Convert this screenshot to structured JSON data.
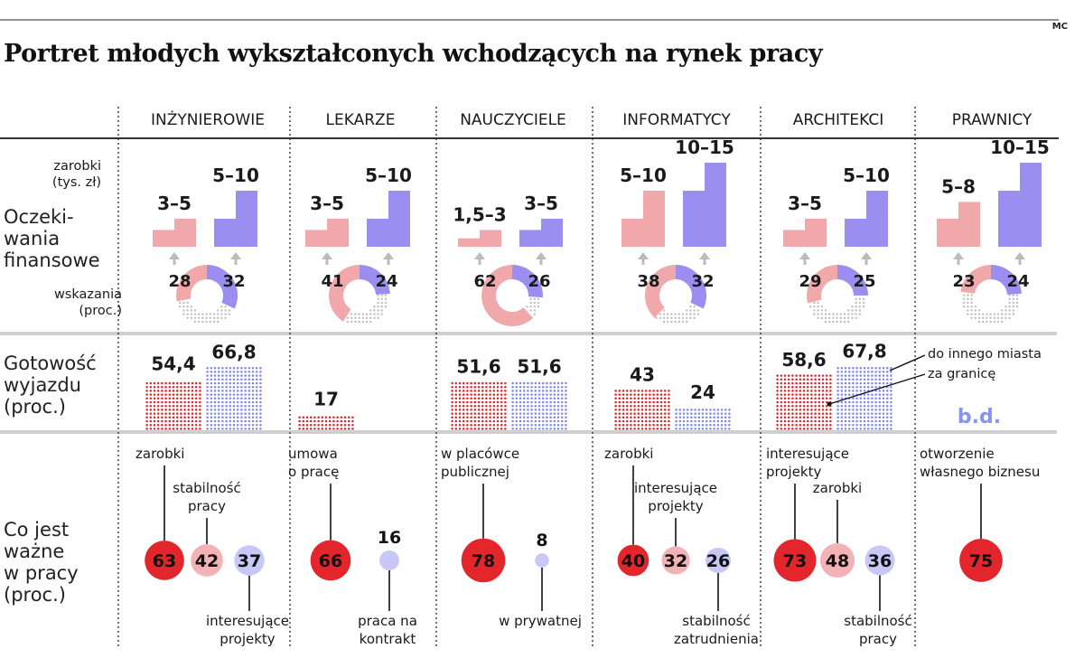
{
  "credit": "MC",
  "title": "Portret młodych wykształconych wchodzących na rynek pracy",
  "row_labels": {
    "expectations": "Oczeki-\nwania\nfinansowe",
    "mobility": "Gotowość\nwyjazdu\n(proc.)",
    "importance": "Co jest\nważne\nw pracy\n(proc.)"
  },
  "sub_labels": {
    "earnings": "zarobki\n(tys. zł)",
    "indications": "wskazania\n(proc.)"
  },
  "colors": {
    "pink": "#f0a8ab",
    "violet": "#9a8ef0",
    "red": "#e3252c",
    "dot_red": "#d9272f",
    "dot_blue": "#7f86ee",
    "circle_pink": "#f3b3b6",
    "circle_lavender": "#c7c8f6",
    "dot_gray": "#bdbdbd",
    "bd": "#8a92ef"
  },
  "chart_data": {
    "type": "table",
    "professions": [
      {
        "name": "INŻYNIEROWIE",
        "expectations": {
          "label_a": "3–5",
          "label_b": "5–10",
          "low_a": 3,
          "high_a": 5,
          "low_b": 5,
          "high_b": 10,
          "ind_a": 28,
          "ind_b": 32
        },
        "mobility": {
          "city": 54.4,
          "abroad": 66.8,
          "city_label": "54,4",
          "abroad_label": "66,8"
        },
        "importance": [
          {
            "label": "zarobki",
            "value": 63,
            "color": "red",
            "pos": "above"
          },
          {
            "label": "stabilność\npracy",
            "value": 42,
            "color": "pink",
            "pos": "above"
          },
          {
            "label": "interesujące\nprojekty",
            "value": 37,
            "color": "lavender",
            "pos": "below"
          }
        ]
      },
      {
        "name": "LEKARZE",
        "expectations": {
          "label_a": "3–5",
          "label_b": "5–10",
          "low_a": 3,
          "high_a": 5,
          "low_b": 5,
          "high_b": 10,
          "ind_a": 41,
          "ind_b": 24
        },
        "mobility": {
          "city": 17,
          "abroad": null,
          "city_label": "17",
          "abroad_label": ""
        },
        "importance": [
          {
            "label": "umowa\no pracę",
            "value": 66,
            "color": "red",
            "pos": "above"
          },
          {
            "label": "praca na\nkontrakt",
            "value": 16,
            "color": "lavender",
            "pos": "below"
          }
        ]
      },
      {
        "name": "NAUCZYCIELE",
        "expectations": {
          "label_a": "1,5–3",
          "label_b": "3–5",
          "low_a": 1.5,
          "high_a": 3,
          "low_b": 3,
          "high_b": 5,
          "ind_a": 62,
          "ind_b": 26
        },
        "mobility": {
          "city": 51.6,
          "abroad": 51.6,
          "city_label": "51,6",
          "abroad_label": "51,6"
        },
        "importance": [
          {
            "label": "w placówce\npublicznej",
            "value": 78,
            "color": "red",
            "pos": "above"
          },
          {
            "label": "w prywatnej",
            "value": 8,
            "color": "lavender",
            "pos": "below"
          }
        ]
      },
      {
        "name": "INFORMATYCY",
        "expectations": {
          "label_a": "5–10",
          "label_b": "10–15",
          "low_a": 5,
          "high_a": 10,
          "low_b": 10,
          "high_b": 15,
          "ind_a": 38,
          "ind_b": 32
        },
        "mobility": {
          "city": 43,
          "abroad": 24,
          "city_label": "43",
          "abroad_label": "24"
        },
        "importance": [
          {
            "label": "zarobki",
            "value": 40,
            "color": "red",
            "pos": "above"
          },
          {
            "label": "interesujące\nprojekty",
            "value": 32,
            "color": "pink",
            "pos": "above"
          },
          {
            "label": "stabilność\nzatrudnienia",
            "value": 26,
            "color": "lavender",
            "pos": "below"
          }
        ]
      },
      {
        "name": "ARCHITEKCI",
        "expectations": {
          "label_a": "3–5",
          "label_b": "5–10",
          "low_a": 3,
          "high_a": 5,
          "low_b": 5,
          "high_b": 10,
          "ind_a": 29,
          "ind_b": 25
        },
        "mobility": {
          "city": 58.6,
          "abroad": 67.8,
          "city_label": "58,6",
          "abroad_label": "67,8"
        },
        "importance": [
          {
            "label": "interesujące\nprojekty",
            "value": 73,
            "color": "red",
            "pos": "above"
          },
          {
            "label": "zarobki",
            "value": 48,
            "color": "pink",
            "pos": "above"
          },
          {
            "label": "stabilność\npracy",
            "value": 36,
            "color": "lavender",
            "pos": "below"
          }
        ]
      },
      {
        "name": "PRAWNICY",
        "expectations": {
          "label_a": "5–8",
          "label_b": "10–15",
          "low_a": 5,
          "high_a": 8,
          "low_b": 10,
          "high_b": 15,
          "ind_a": 23,
          "ind_b": 24
        },
        "mobility": {
          "city": null,
          "abroad": null,
          "city_label": "",
          "abroad_label": "",
          "no_data_label": "b.d."
        },
        "importance": [
          {
            "label": "otworzenie\nwłasnego biznesu",
            "value": 75,
            "color": "red",
            "pos": "above"
          }
        ]
      }
    ],
    "legend": {
      "city": "do innego miasta",
      "abroad": "za granicę"
    }
  }
}
